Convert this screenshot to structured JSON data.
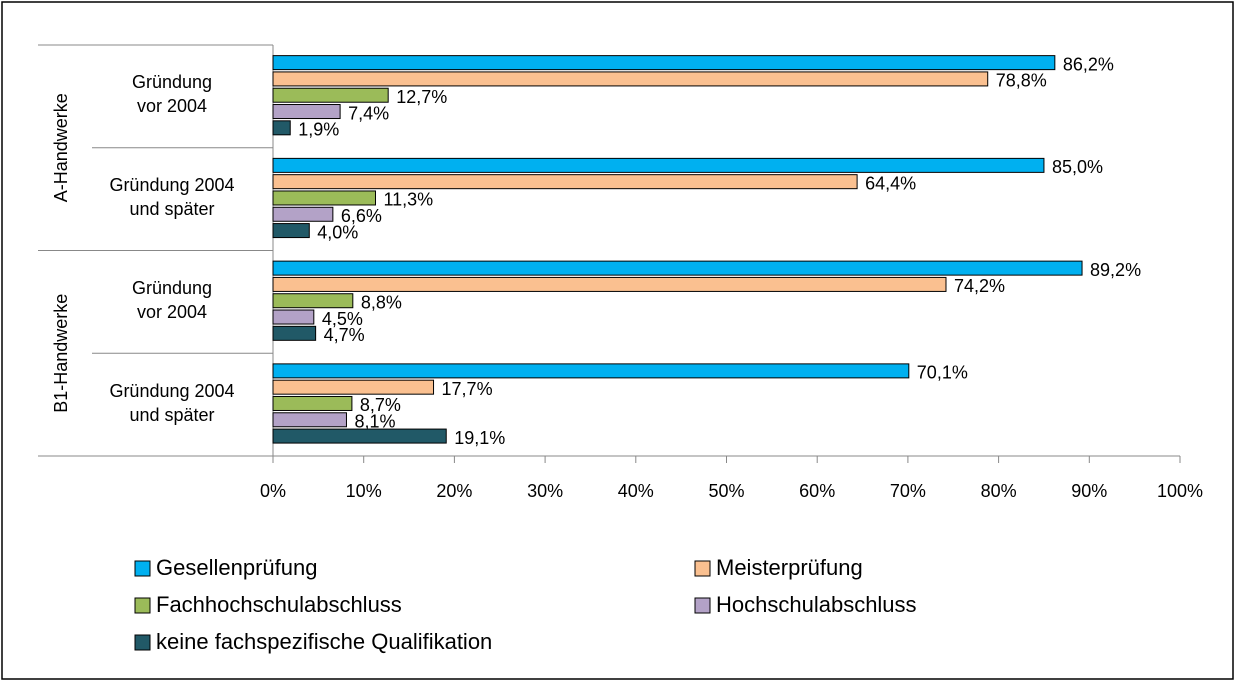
{
  "chart_data": {
    "type": "hbar",
    "groups": [
      "A-Handwerke",
      "B1-Handwerke"
    ],
    "categories": [
      "Gründung\nvor 2004",
      "Gründung 2004\nund später",
      "Gründung\nvor 2004",
      "Gründung 2004\nund später"
    ],
    "series": [
      {
        "name": "Gesellenprüfung",
        "color": "#00b0f0",
        "values": [
          86.2,
          85.0,
          89.2,
          70.1
        ],
        "value_labels": [
          "86,2%",
          "85,0%",
          "89,2%",
          "70,1%"
        ]
      },
      {
        "name": "Meisterprüfung",
        "color": "#fac090",
        "values": [
          78.8,
          64.4,
          74.2,
          17.7
        ],
        "value_labels": [
          "78,8%",
          "64,4%",
          "74,2%",
          "17,7%"
        ]
      },
      {
        "name": "Fachhochschulabschluss",
        "color": "#9bbb59",
        "values": [
          12.7,
          11.3,
          8.8,
          8.7
        ],
        "value_labels": [
          "12,7%",
          "11,3%",
          "8,8%",
          "8,7%"
        ]
      },
      {
        "name": "Hochschulabschluss",
        "color": "#b3a2c7",
        "values": [
          7.4,
          6.6,
          4.5,
          8.1
        ],
        "value_labels": [
          "7,4%",
          "6,6%",
          "4,5%",
          "8,1%"
        ]
      },
      {
        "name": "keine fachspezifische Qualifikation",
        "color": "#215967",
        "values": [
          1.9,
          4.0,
          4.7,
          19.1
        ],
        "value_labels": [
          "1,9%",
          "4,0%",
          "4,7%",
          "19,1%"
        ]
      }
    ],
    "xlim": [
      0,
      100
    ],
    "xticks": [
      {
        "value": 0,
        "label": "0%"
      },
      {
        "value": 10,
        "label": "10%"
      },
      {
        "value": 20,
        "label": "20%"
      },
      {
        "value": 30,
        "label": "30%"
      },
      {
        "value": 40,
        "label": "40%"
      },
      {
        "value": 50,
        "label": "50%"
      },
      {
        "value": 60,
        "label": "60%"
      },
      {
        "value": 70,
        "label": "70%"
      },
      {
        "value": 80,
        "label": "80%"
      },
      {
        "value": 90,
        "label": "90%"
      },
      {
        "value": 100,
        "label": "100%"
      }
    ],
    "grid": false
  }
}
